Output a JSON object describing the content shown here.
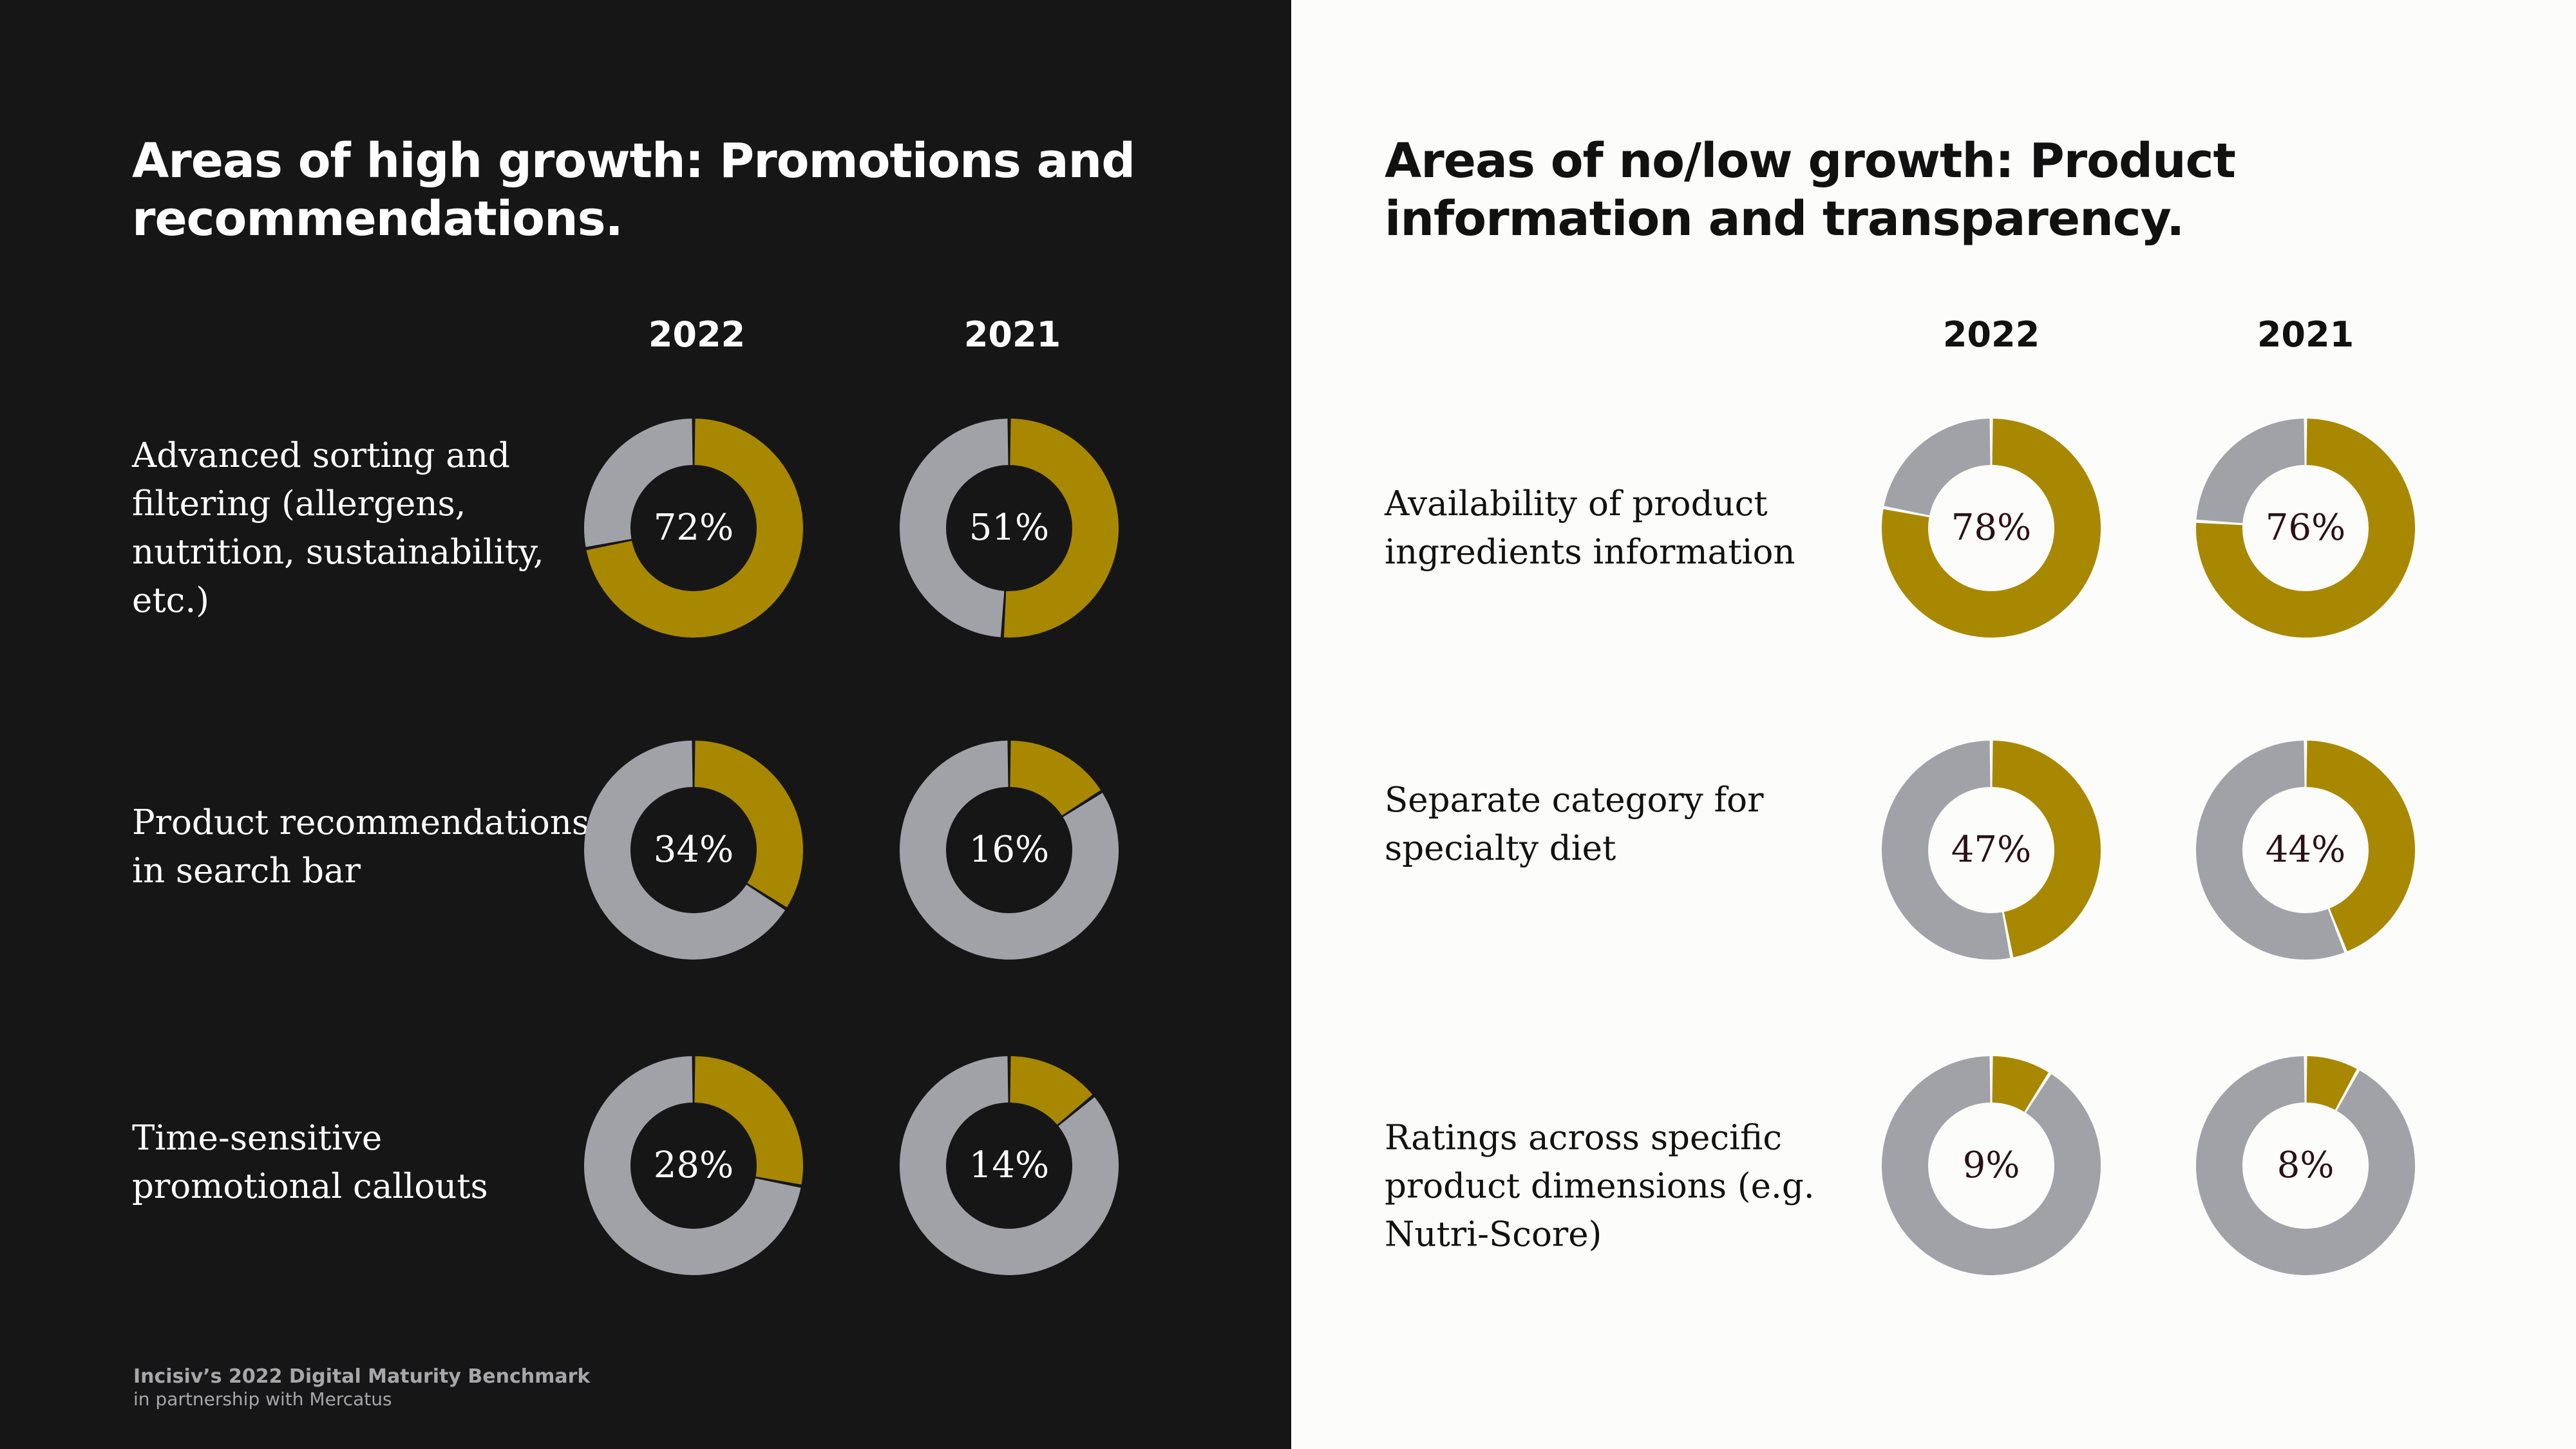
{
  "colors": {
    "dark_background": "#161616",
    "light_background": "#fcfcfa",
    "accent_gold": "#a88800",
    "ring_gray": "#a1a1a8",
    "dark_text": "#2a1014",
    "footer_text": "#a6a6ab"
  },
  "left": {
    "title": "Areas of high growth: Promotions and recommendations.",
    "years": [
      "2022",
      "2021"
    ]
  },
  "right": {
    "title": "Areas of no/low growth: Product information and transparency.",
    "years": [
      "2022",
      "2021"
    ]
  },
  "footer": {
    "line1": "Incisiv’s 2022 Digital Maturity Benchmark",
    "line2": "in partnership with Mercatus"
  },
  "chart_data": [
    {
      "type": "pie",
      "title": "Areas of high growth: Promotions and recommendations.",
      "categories": [
        "Advanced sorting and filtering (allergens, nutrition, sustainability, etc.)",
        "Product recommendations in search bar",
        "Time-sensitive promotional callouts"
      ],
      "series": [
        {
          "name": "2022",
          "values": [
            72,
            34,
            28
          ],
          "labels": [
            "72%",
            "34%",
            "28%"
          ]
        },
        {
          "name": "2021",
          "values": [
            51,
            16,
            14
          ],
          "labels": [
            "51%",
            "16%",
            "14%"
          ]
        }
      ]
    },
    {
      "type": "pie",
      "title": "Areas of no/low growth: Product information and transparency.",
      "categories": [
        "Availability of product ingredients information",
        "Separate category for specialty diet",
        "Ratings across specific product dimensions (e.g. Nutri-Score)"
      ],
      "series": [
        {
          "name": "2022",
          "values": [
            78,
            47,
            9
          ],
          "labels": [
            "78%",
            "47%",
            "9%"
          ]
        },
        {
          "name": "2021",
          "values": [
            76,
            44,
            8
          ],
          "labels": [
            "76%",
            "44%",
            "8%"
          ]
        }
      ]
    }
  ]
}
